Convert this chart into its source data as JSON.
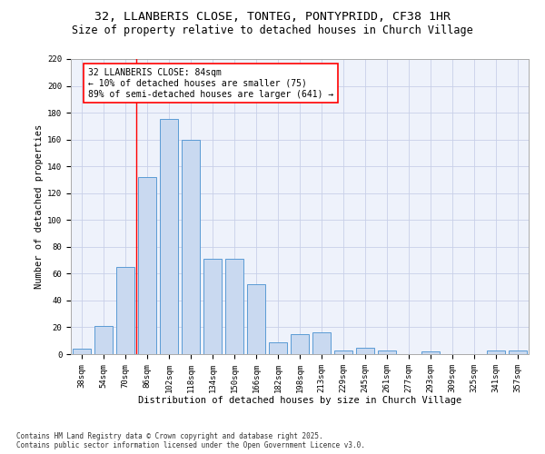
{
  "title": "32, LLANBERIS CLOSE, TONTEG, PONTYPRIDD, CF38 1HR",
  "subtitle": "Size of property relative to detached houses in Church Village",
  "xlabel": "Distribution of detached houses by size in Church Village",
  "ylabel": "Number of detached properties",
  "categories": [
    "38sqm",
    "54sqm",
    "70sqm",
    "86sqm",
    "102sqm",
    "118sqm",
    "134sqm",
    "150sqm",
    "166sqm",
    "182sqm",
    "198sqm",
    "213sqm",
    "229sqm",
    "245sqm",
    "261sqm",
    "277sqm",
    "293sqm",
    "309sqm",
    "325sqm",
    "341sqm",
    "357sqm"
  ],
  "values": [
    4,
    21,
    65,
    132,
    175,
    160,
    71,
    71,
    52,
    9,
    15,
    16,
    3,
    5,
    3,
    0,
    2,
    0,
    0,
    3,
    3
  ],
  "bar_color": "#c9d9f0",
  "bar_edge_color": "#5b9bd5",
  "bar_width": 0.8,
  "annotation_text": "32 LLANBERIS CLOSE: 84sqm\n← 10% of detached houses are smaller (75)\n89% of semi-detached houses are larger (641) →",
  "annotation_box_color": "white",
  "annotation_box_edge_color": "red",
  "vline_color": "red",
  "vline_x": 2.5,
  "ylim": [
    0,
    220
  ],
  "yticks": [
    0,
    20,
    40,
    60,
    80,
    100,
    120,
    140,
    160,
    180,
    200,
    220
  ],
  "footer": "Contains HM Land Registry data © Crown copyright and database right 2025.\nContains public sector information licensed under the Open Government Licence v3.0.",
  "bg_color": "#eef2fb",
  "grid_color": "#c8d0e8",
  "title_fontsize": 9.5,
  "subtitle_fontsize": 8.5,
  "axis_label_fontsize": 7.5,
  "tick_fontsize": 6.5,
  "annotation_fontsize": 7,
  "footer_fontsize": 5.5
}
